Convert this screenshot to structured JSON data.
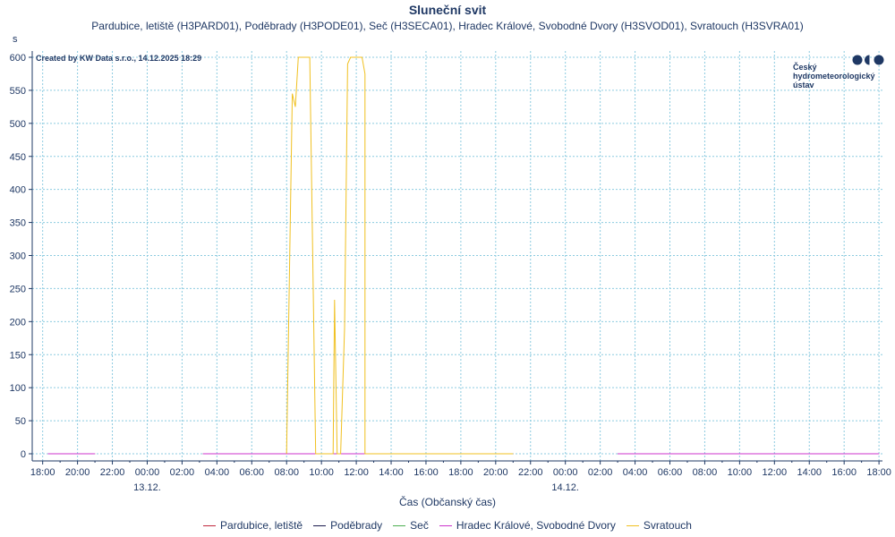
{
  "colors": {
    "text": "#1f3864",
    "grid": "#8ccbe0",
    "axis": "#1f3864",
    "series": [
      "#c0283c",
      "#1a1a4d",
      "#4caf50",
      "#cc33cc",
      "#f0c020"
    ]
  },
  "header": {
    "title": "Sluneční svit",
    "subtitle": "Pardubice, letiště (H3PARD01), Poděbrady (H3PODE01), Seč (H3SECA01), Hradec Králové, Svobodné Dvory (H3SVOD01), Svratouch (H3SVRA01)",
    "unit": "s",
    "created": "Created by KW Data s.r.o., 14.12.2025 18:29"
  },
  "logo": {
    "lines": [
      "Český",
      "hydrometeorologický",
      "ústav"
    ]
  },
  "chart_data": {
    "type": "line",
    "xlabel": "Čas (Občanský čas)",
    "ylabel": "s",
    "ylim": [
      0,
      600
    ],
    "yticks": [
      0,
      50,
      100,
      150,
      200,
      250,
      300,
      350,
      400,
      450,
      500,
      550,
      600
    ],
    "xlim_hours": [
      -6.6,
      42.2
    ],
    "xticks": [
      {
        "h": -6,
        "label": "18:00"
      },
      {
        "h": -4,
        "label": "20:00"
      },
      {
        "h": -2,
        "label": "22:00"
      },
      {
        "h": 0,
        "label": "00:00",
        "sublabel": "13.12."
      },
      {
        "h": 2,
        "label": "02:00"
      },
      {
        "h": 4,
        "label": "04:00"
      },
      {
        "h": 6,
        "label": "06:00"
      },
      {
        "h": 8,
        "label": "08:00"
      },
      {
        "h": 10,
        "label": "10:00"
      },
      {
        "h": 12,
        "label": "12:00"
      },
      {
        "h": 14,
        "label": "14:00"
      },
      {
        "h": 16,
        "label": "16:00"
      },
      {
        "h": 18,
        "label": "18:00"
      },
      {
        "h": 20,
        "label": "20:00"
      },
      {
        "h": 22,
        "label": "22:00"
      },
      {
        "h": 24,
        "label": "00:00",
        "sublabel": "14.12."
      },
      {
        "h": 26,
        "label": "02:00"
      },
      {
        "h": 28,
        "label": "04:00"
      },
      {
        "h": 30,
        "label": "06:00"
      },
      {
        "h": 32,
        "label": "08:00"
      },
      {
        "h": 34,
        "label": "10:00"
      },
      {
        "h": 36,
        "label": "12:00"
      },
      {
        "h": 38,
        "label": "14:00"
      },
      {
        "h": 40,
        "label": "16:00"
      },
      {
        "h": 42,
        "label": "18:00"
      }
    ],
    "series": [
      {
        "name": "Pardubice, letiště",
        "segments": [
          [
            [
              -5.7,
              0
            ],
            [
              -3.0,
              0
            ]
          ],
          [
            [
              3.2,
              0
            ],
            [
              21.0,
              0
            ]
          ],
          [
            [
              27.0,
              0
            ],
            [
              42.0,
              0
            ]
          ]
        ]
      },
      {
        "name": "Poděbrady",
        "segments": [
          [
            [
              -5.7,
              0
            ],
            [
              -3.0,
              0
            ]
          ],
          [
            [
              3.2,
              0
            ],
            [
              21.0,
              0
            ]
          ],
          [
            [
              27.0,
              0
            ],
            [
              42.0,
              0
            ]
          ]
        ]
      },
      {
        "name": "Seč",
        "segments": [
          [
            [
              -5.7,
              0
            ],
            [
              -3.0,
              0
            ]
          ],
          [
            [
              3.2,
              0
            ],
            [
              21.0,
              0
            ]
          ],
          [
            [
              27.0,
              0
            ],
            [
              42.0,
              0
            ]
          ]
        ]
      },
      {
        "name": "Hradec Králové, Svobodné Dvory",
        "segments": [
          [
            [
              -5.7,
              0
            ],
            [
              -3.0,
              0
            ]
          ],
          [
            [
              3.2,
              0
            ],
            [
              21.0,
              0
            ]
          ],
          [
            [
              27.0,
              0
            ],
            [
              42.0,
              0
            ]
          ]
        ]
      },
      {
        "name": "Svratouch",
        "segments": [
          [
            [
              8.0,
              0
            ],
            [
              8.33,
              545
            ],
            [
              8.5,
              525
            ],
            [
              8.67,
              600
            ],
            [
              9.33,
              600
            ],
            [
              9.67,
              0
            ],
            [
              10.67,
              0
            ],
            [
              10.75,
              233
            ],
            [
              10.9,
              0
            ],
            [
              11.1,
              0
            ],
            [
              11.33,
              190
            ],
            [
              11.5,
              590
            ],
            [
              11.67,
              600
            ],
            [
              12.33,
              600
            ],
            [
              12.5,
              575
            ],
            [
              12.5,
              0
            ],
            [
              21.0,
              0
            ]
          ]
        ]
      }
    ]
  }
}
